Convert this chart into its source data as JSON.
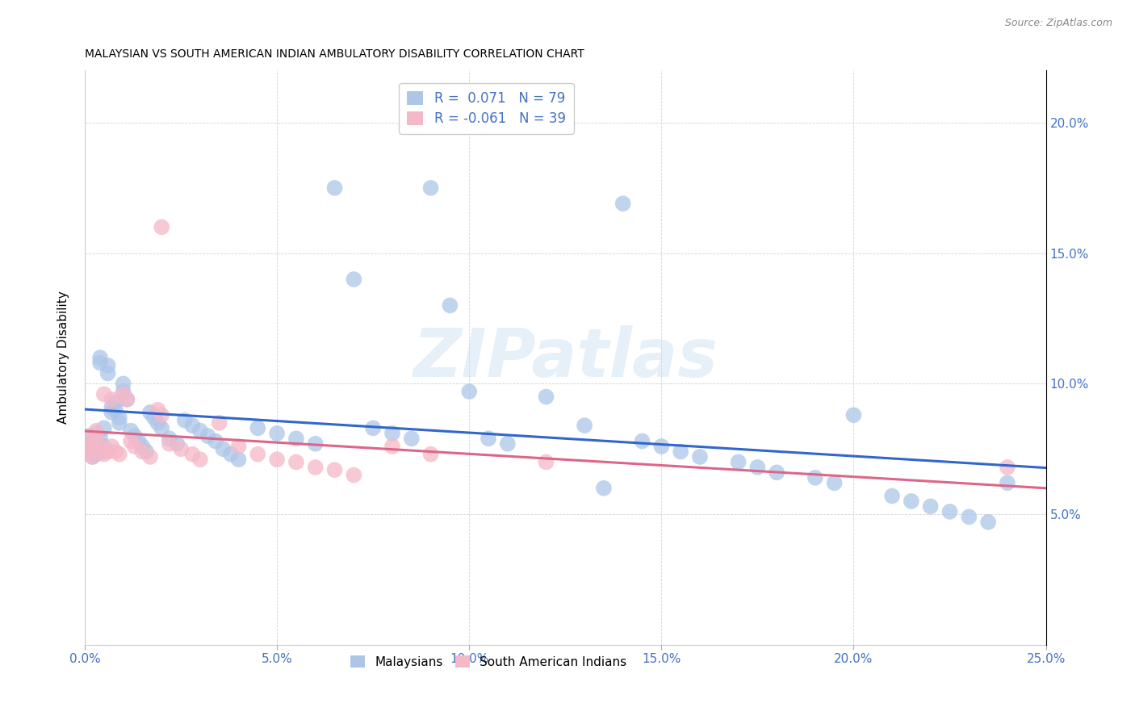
{
  "title": "MALAYSIAN VS SOUTH AMERICAN INDIAN AMBULATORY DISABILITY CORRELATION CHART",
  "source": "Source: ZipAtlas.com",
  "ylabel": "Ambulatory Disability",
  "watermark": "ZIPatlas",
  "xlim": [
    0.0,
    0.25
  ],
  "ylim": [
    0.0,
    0.22
  ],
  "xticks": [
    0.0,
    0.05,
    0.1,
    0.15,
    0.2,
    0.25
  ],
  "yticks_right": [
    0.05,
    0.1,
    0.15,
    0.2
  ],
  "malaysian_color": "#adc6e8",
  "south_american_color": "#f5b8c8",
  "line_color_malaysian": "#3366cc",
  "line_color_south_american": "#dd6688",
  "mal_x": [
    0.001,
    0.001,
    0.002,
    0.002,
    0.002,
    0.003,
    0.003,
    0.003,
    0.004,
    0.004,
    0.004,
    0.005,
    0.005,
    0.005,
    0.006,
    0.006,
    0.007,
    0.007,
    0.008,
    0.008,
    0.009,
    0.009,
    0.01,
    0.01,
    0.011,
    0.012,
    0.013,
    0.014,
    0.015,
    0.016,
    0.017,
    0.018,
    0.019,
    0.02,
    0.022,
    0.024,
    0.026,
    0.028,
    0.03,
    0.032,
    0.034,
    0.036,
    0.038,
    0.04,
    0.045,
    0.05,
    0.055,
    0.06,
    0.065,
    0.07,
    0.075,
    0.08,
    0.085,
    0.09,
    0.095,
    0.1,
    0.105,
    0.11,
    0.12,
    0.13,
    0.135,
    0.14,
    0.145,
    0.15,
    0.155,
    0.16,
    0.17,
    0.175,
    0.18,
    0.19,
    0.195,
    0.2,
    0.21,
    0.215,
    0.22,
    0.225,
    0.23,
    0.235,
    0.24
  ],
  "mal_y": [
    0.08,
    0.075,
    0.076,
    0.072,
    0.078,
    0.081,
    0.077,
    0.073,
    0.11,
    0.108,
    0.079,
    0.083,
    0.076,
    0.074,
    0.107,
    0.104,
    0.091,
    0.089,
    0.093,
    0.09,
    0.087,
    0.085,
    0.1,
    0.097,
    0.094,
    0.082,
    0.08,
    0.078,
    0.076,
    0.074,
    0.089,
    0.087,
    0.085,
    0.083,
    0.079,
    0.077,
    0.086,
    0.084,
    0.082,
    0.08,
    0.078,
    0.075,
    0.073,
    0.071,
    0.083,
    0.081,
    0.079,
    0.077,
    0.175,
    0.14,
    0.083,
    0.081,
    0.079,
    0.175,
    0.13,
    0.097,
    0.079,
    0.077,
    0.095,
    0.084,
    0.06,
    0.169,
    0.078,
    0.076,
    0.074,
    0.072,
    0.07,
    0.068,
    0.066,
    0.064,
    0.062,
    0.088,
    0.057,
    0.055,
    0.053,
    0.051,
    0.049,
    0.047,
    0.062
  ],
  "sai_x": [
    0.001,
    0.001,
    0.002,
    0.002,
    0.003,
    0.003,
    0.004,
    0.005,
    0.005,
    0.006,
    0.007,
    0.007,
    0.008,
    0.009,
    0.01,
    0.011,
    0.012,
    0.013,
    0.015,
    0.017,
    0.019,
    0.02,
    0.022,
    0.025,
    0.028,
    0.03,
    0.035,
    0.04,
    0.045,
    0.05,
    0.055,
    0.06,
    0.065,
    0.07,
    0.08,
    0.09,
    0.12,
    0.24,
    0.02
  ],
  "sai_y": [
    0.078,
    0.074,
    0.076,
    0.072,
    0.082,
    0.079,
    0.076,
    0.073,
    0.096,
    0.074,
    0.094,
    0.076,
    0.074,
    0.073,
    0.096,
    0.094,
    0.078,
    0.076,
    0.074,
    0.072,
    0.09,
    0.088,
    0.077,
    0.075,
    0.073,
    0.071,
    0.085,
    0.076,
    0.073,
    0.071,
    0.07,
    0.068,
    0.067,
    0.065,
    0.076,
    0.073,
    0.07,
    0.068,
    0.16
  ]
}
